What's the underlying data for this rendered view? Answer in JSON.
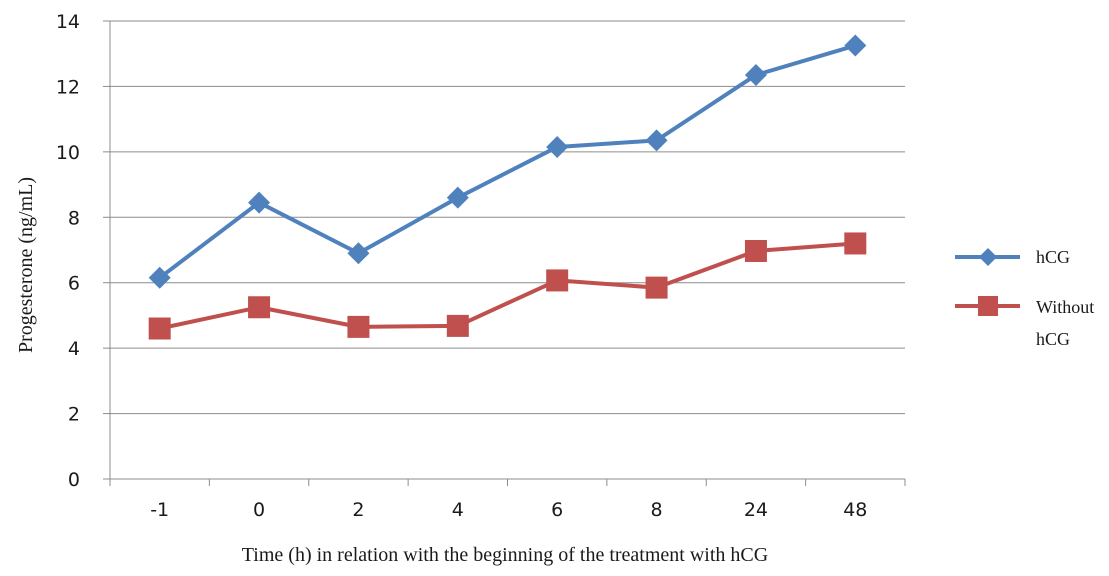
{
  "chart_data": {
    "type": "line",
    "categories": [
      "-1",
      "0",
      "2",
      "4",
      "6",
      "8",
      "24",
      "48"
    ],
    "series": [
      {
        "name": "hCG",
        "values": [
          6.15,
          8.45,
          6.9,
          8.6,
          10.15,
          10.35,
          12.35,
          13.25
        ],
        "color": "#4f81bd",
        "marker": "diamond"
      },
      {
        "name": "Without hCG",
        "values": [
          4.6,
          5.25,
          4.65,
          4.68,
          6.07,
          5.85,
          6.97,
          7.2
        ],
        "color": "#c0504d",
        "marker": "square"
      }
    ],
    "xlabel": "Time (h) in relation with the beginning of the treatment with hCG",
    "ylabel": "Progesterone (ng/mL)",
    "ylim": [
      0,
      14
    ],
    "yticks": [
      "0",
      "2",
      "4",
      "6",
      "8",
      "10",
      "12",
      "14"
    ],
    "grid": true,
    "legend_position": "right",
    "legend": {
      "hcg_label": "hCG",
      "without_line1": "Without",
      "without_line2": "hCG"
    }
  }
}
